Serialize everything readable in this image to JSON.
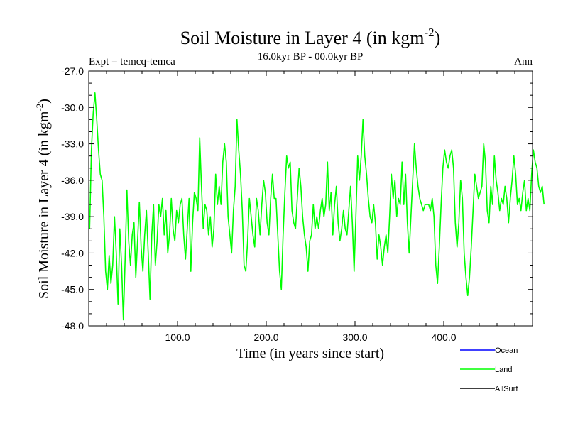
{
  "chart_data": {
    "type": "line",
    "title_main": "Soil Moisture in Layer 4 (in kgm",
    "title_sup": "-2",
    "title_close": ")",
    "subtitle_left": "Expt = temcq-temca",
    "subtitle_center": "16.0kyr BP - 00.0kyr BP",
    "subtitle_right": "Ann",
    "xlabel": "Time (in years since start)",
    "ylabel_main": "Soil Moisture in Layer 4 (in kgm",
    "ylabel_sup": "-2",
    "ylabel_close": ")",
    "xlim": [
      0,
      500
    ],
    "ylim": [
      -48,
      -27
    ],
    "x_ticks": [
      {
        "value": 100,
        "label": "100.0"
      },
      {
        "value": 200,
        "label": "200.0"
      },
      {
        "value": 300,
        "label": "300.0"
      },
      {
        "value": 400,
        "label": "400.0"
      }
    ],
    "y_ticks": [
      {
        "value": -27,
        "label": "-27.0"
      },
      {
        "value": -30,
        "label": "-30.0"
      },
      {
        "value": -33,
        "label": "-33.0"
      },
      {
        "value": -36,
        "label": "-36.0"
      },
      {
        "value": -39,
        "label": "-39.0"
      },
      {
        "value": -42,
        "label": "-42.0"
      },
      {
        "value": -45,
        "label": "-45.0"
      },
      {
        "value": -48,
        "label": "-48.0"
      }
    ],
    "legend": [
      {
        "name": "Ocean",
        "color": "#0000ff"
      },
      {
        "name": "Land",
        "color": "#00ff00"
      },
      {
        "name": "AllSurf",
        "color": "#000000"
      }
    ],
    "series": [
      {
        "name": "Land",
        "color": "#00ff00",
        "x_start": 1,
        "x_step": 2,
        "values": [
          -40.0,
          -33.5,
          -30.5,
          -28.8,
          -31.0,
          -33.5,
          -35.5,
          -36.0,
          -39.0,
          -43.5,
          -45.0,
          -42.2,
          -44.5,
          -43.0,
          -39.0,
          -42.0,
          -46.2,
          -40.0,
          -43.0,
          -47.5,
          -42.5,
          -36.8,
          -41.0,
          -43.0,
          -40.5,
          -39.5,
          -44.0,
          -41.0,
          -37.8,
          -41.5,
          -43.5,
          -40.5,
          -38.5,
          -42.0,
          -45.8,
          -40.5,
          -38.0,
          -43.0,
          -41.0,
          -38.0,
          -39.0,
          -37.5,
          -40.5,
          -38.5,
          -42.0,
          -40.5,
          -37.5,
          -40.0,
          -41.0,
          -38.5,
          -39.5,
          -38.0,
          -37.5,
          -40.5,
          -42.5,
          -40.0,
          -37.5,
          -43.5,
          -39.5,
          -37.0,
          -37.5,
          -38.5,
          -32.5,
          -36.5,
          -40.0,
          -38.0,
          -38.5,
          -40.5,
          -39.0,
          -41.5,
          -40.0,
          -35.5,
          -38.0,
          -36.5,
          -38.0,
          -34.5,
          -33.0,
          -34.5,
          -39.0,
          -40.5,
          -42.0,
          -38.5,
          -36.5,
          -31.0,
          -33.5,
          -35.5,
          -38.5,
          -43.0,
          -43.5,
          -41.0,
          -37.5,
          -39.0,
          -40.5,
          -41.5,
          -37.5,
          -38.5,
          -40.5,
          -38.0,
          -36.0,
          -37.0,
          -39.5,
          -40.5,
          -37.5,
          -35.5,
          -37.5,
          -37.5,
          -40.5,
          -43.5,
          -45.0,
          -40.5,
          -37.0,
          -34.0,
          -35.0,
          -34.5,
          -38.5,
          -39.5,
          -40.0,
          -37.5,
          -35.0,
          -36.5,
          -39.0,
          -40.5,
          -41.5,
          -43.5,
          -41.0,
          -40.5,
          -38.0,
          -40.0,
          -39.0,
          -40.0,
          -38.5,
          -37.5,
          -39.0,
          -38.0,
          -34.5,
          -38.5,
          -37.0,
          -40.5,
          -38.0,
          -36.5,
          -39.5,
          -41.0,
          -40.0,
          -38.5,
          -40.0,
          -40.5,
          -38.5,
          -36.5,
          -39.5,
          -43.5,
          -39.0,
          -34.0,
          -36.0,
          -34.0,
          -31.0,
          -34.0,
          -35.5,
          -37.5,
          -39.0,
          -39.5,
          -38.0,
          -39.5,
          -42.5,
          -40.5,
          -41.5,
          -43.0,
          -41.5,
          -40.5,
          -42.0,
          -39.0,
          -35.5,
          -37.5,
          -36.0,
          -39.0,
          -37.5,
          -38.0,
          -34.5,
          -38.0,
          -35.5,
          -39.5,
          -42.0,
          -39.0,
          -36.0,
          -33.0,
          -35.0,
          -36.5,
          -37.5,
          -38.0,
          -38.5,
          -38.0,
          -38.0,
          -38.0,
          -38.5,
          -37.5,
          -39.0,
          -43.0,
          -44.5,
          -41.5,
          -38.0,
          -35.0,
          -33.5,
          -34.5,
          -35.0,
          -34.0,
          -33.5,
          -35.0,
          -39.5,
          -41.5,
          -39.5,
          -36.0,
          -37.5,
          -42.0,
          -44.0,
          -45.5,
          -44.0,
          -41.5,
          -38.5,
          -35.5,
          -36.5,
          -37.5,
          -37.0,
          -36.5,
          -33.0,
          -34.5,
          -38.5,
          -39.5,
          -36.5,
          -38.0,
          -34.0,
          -36.0,
          -37.0,
          -38.5,
          -37.5,
          -38.0,
          -36.5,
          -37.5,
          -39.5,
          -37.5,
          -36.0,
          -34.0,
          -35.5,
          -38.0,
          -37.5,
          -38.5,
          -37.0,
          -36.0,
          -38.5,
          -37.5,
          -38.5,
          -35.5,
          -33.5,
          -34.5,
          -35.0,
          -36.5,
          -37.0,
          -36.5,
          -38.0
        ]
      }
    ]
  }
}
